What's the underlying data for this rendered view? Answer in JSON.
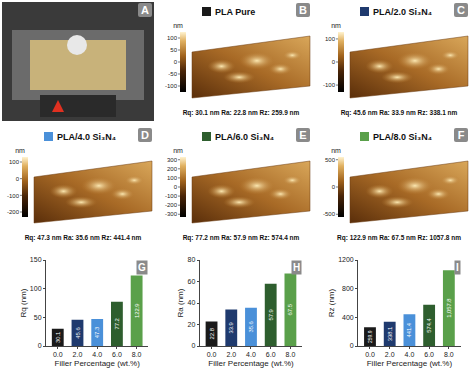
{
  "images": [
    {
      "letter": "A"
    },
    {
      "letter": "B",
      "label": "PLA Pure",
      "color": "#1a1a1a",
      "unit": "nm",
      "colorbar_range": [
        -125,
        125
      ],
      "colorbar_ticks": [
        100,
        50,
        0,
        -50,
        -100
      ],
      "roughness_text": "Rq: 30.1 nm Ra: 22.8 nm Rz: 259.9 nm"
    },
    {
      "letter": "C",
      "label": "PLA/2.0 Si₃N₄",
      "color": "#1f3a6e",
      "unit": "nm",
      "colorbar_range": [
        -130,
        130
      ],
      "colorbar_ticks": [
        100,
        0,
        -100
      ],
      "roughness_text": "Rq: 45.6 nm Ra: 33.9 nm Rz: 338.1 nm"
    },
    {
      "letter": "D",
      "label": "PLA/4.0 Si₃N₄",
      "color": "#4a90d9",
      "unit": "nm",
      "colorbar_range": [
        -230,
        130
      ],
      "colorbar_ticks": [
        100,
        0,
        -100,
        -200
      ],
      "roughness_text": "Rq: 47.3 nm Ra: 35.6 nm Rz: 441.4 nm"
    },
    {
      "letter": "E",
      "label": "PLA/6.0 Si₃N₄",
      "color": "#2e5e2e",
      "unit": "nm",
      "colorbar_range": [
        -330,
        330
      ],
      "colorbar_ticks": [
        300,
        200,
        100,
        0,
        -100,
        -200,
        -300
      ],
      "roughness_text": "Rq: 77.2 nm Ra: 57.9 nm Rz: 574.4 nm"
    },
    {
      "letter": "F",
      "label": "PLA/8.0 Si₃N₄",
      "color": "#5aa04a",
      "unit": "nm",
      "colorbar_range": [
        -550,
        550
      ],
      "colorbar_ticks": [
        500,
        0,
        -500
      ],
      "roughness_text": "Rq: 122.9 nm Ra: 67.5 nm Rz: 1057.8 nm"
    }
  ],
  "chart_data": [
    {
      "type": "bar",
      "annotations": [
        "G"
      ],
      "x_label": "Filler Percentage (wt.%)",
      "y_label": "Rq (nm)",
      "categories": [
        "0.0",
        "2.0",
        "4.0",
        "6.0",
        "8.0"
      ],
      "values": [
        30.1,
        45.6,
        47.3,
        77.2,
        122.9
      ],
      "colors": [
        "#1a1a1a",
        "#1f3a6e",
        "#4a90d9",
        "#2e5e2e",
        "#5aa04a"
      ],
      "ylim": [
        0,
        150
      ],
      "yticks": [
        0,
        50,
        100,
        150
      ],
      "grid": false,
      "data_labels": true
    },
    {
      "type": "bar",
      "annotations": [
        "H"
      ],
      "x_label": "Filler Percentage (wt.%)",
      "y_label": "Ra (nm)",
      "categories": [
        "0.0",
        "2.0",
        "4.0",
        "6.0",
        "8.0"
      ],
      "values": [
        22.8,
        33.9,
        35.6,
        57.9,
        67.5
      ],
      "colors": [
        "#1a1a1a",
        "#1f3a6e",
        "#4a90d9",
        "#2e5e2e",
        "#5aa04a"
      ],
      "ylim": [
        0,
        80
      ],
      "yticks": [
        0,
        20,
        40,
        60,
        80
      ],
      "grid": false,
      "data_labels": true
    },
    {
      "type": "bar",
      "annotations": [
        "I"
      ],
      "x_label": "Filler Percentage (wt.%)",
      "y_label": "Rz (nm)",
      "categories": [
        "0.0",
        "2.0",
        "4.0",
        "6.0",
        "8.0"
      ],
      "values": [
        259.9,
        338.1,
        441.4,
        574.4,
        1057.8
      ],
      "value_labels": [
        "259.9",
        "338.1",
        "441.4",
        "574.4",
        "1,057.8"
      ],
      "colors": [
        "#1a1a1a",
        "#1f3a6e",
        "#4a90d9",
        "#2e5e2e",
        "#5aa04a"
      ],
      "ylim": [
        0,
        1200
      ],
      "yticks": [
        0,
        400,
        800,
        1200
      ],
      "grid": false,
      "data_labels": true
    }
  ]
}
